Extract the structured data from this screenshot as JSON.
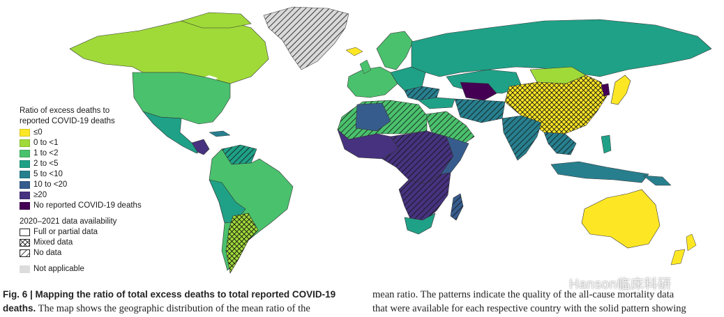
{
  "legend": {
    "title": "Ratio of excess deaths to reported COVID-19 deaths",
    "items": [
      {
        "label": "≤0",
        "color": "#fde725"
      },
      {
        "label": "0 to <1",
        "color": "#a0da39"
      },
      {
        "label": "1 to <2",
        "color": "#4ac16d"
      },
      {
        "label": "2 to <5",
        "color": "#1fa187"
      },
      {
        "label": "5 to <10",
        "color": "#277f8e"
      },
      {
        "label": "10 to <20",
        "color": "#365c8d"
      },
      {
        "label": "≥20",
        "color": "#46327e"
      },
      {
        "label": "No reported COVID-19 deaths",
        "color": "#440154"
      }
    ],
    "availability_title": "2020–2021 data availability",
    "availability": [
      {
        "label": "Full or partial data",
        "pattern": "solid"
      },
      {
        "label": "Mixed data",
        "pattern": "crosshatch"
      },
      {
        "label": "No data",
        "pattern": "diagonal"
      }
    ],
    "not_applicable": {
      "label": "Not applicable",
      "color": "#dcdcdc"
    }
  },
  "caption": {
    "bold_prefix": "Fig. 6 | Mapping the ratio of total excess deaths to total reported COVID-19 deaths.",
    "left_text": " The map shows the geographic distribution of the mean ratio of the",
    "right_line1": "mean ratio. The patterns indicate the quality of the all-cause mortality data",
    "right_line2": "that were available for each respective country with the solid pattern showing"
  },
  "watermark": {
    "text": "Hanson临床科研",
    "icon": "wechat-icon"
  }
}
